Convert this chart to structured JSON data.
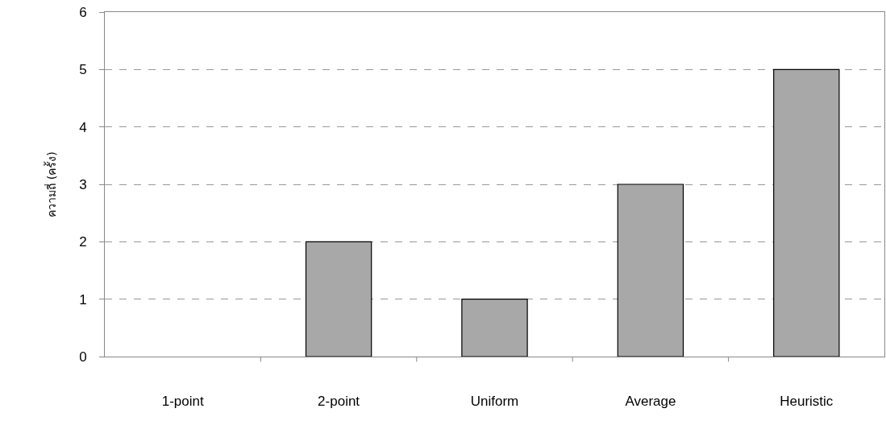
{
  "chart_data": {
    "type": "bar",
    "ylabel": "ความถี่ (ครั้ง)",
    "categories": [
      "1-point",
      "2-point",
      "Uniform",
      "Average",
      "Heuristic"
    ],
    "values": [
      0,
      2,
      1,
      3,
      5
    ],
    "color": "#a8a8a8",
    "ylim": [
      0,
      6
    ],
    "yticks": [
      0,
      1,
      2,
      3,
      4,
      5,
      6
    ],
    "grid": "y"
  }
}
